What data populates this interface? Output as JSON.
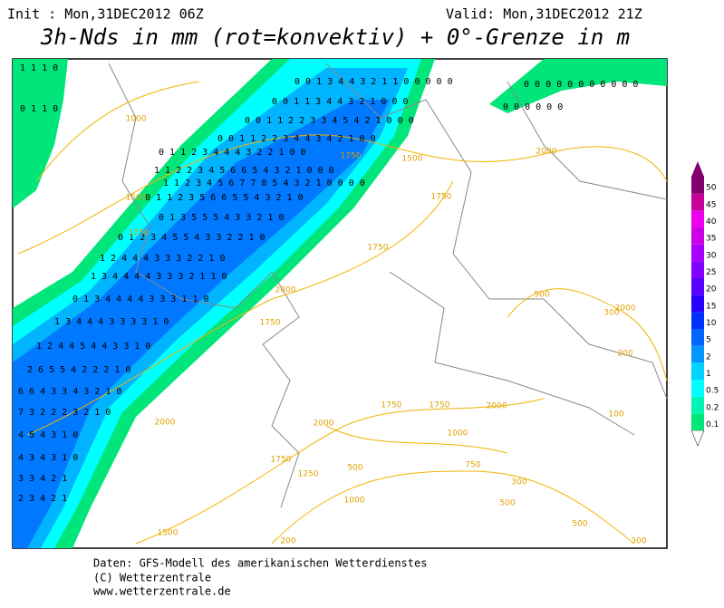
{
  "header": {
    "init": "Init : Mon,31DEC2012 06Z",
    "valid": "Valid: Mon,31DEC2012 21Z",
    "title": "3h-Nds in mm (rot=konvektiv) + 0°-Grenze in m"
  },
  "legend": {
    "labels": [
      "0.1",
      "0.2",
      "0.5",
      "1",
      "2",
      "5",
      "10",
      "15",
      "20",
      "25",
      "30",
      "35",
      "40",
      "45",
      "50"
    ],
    "colors": [
      "#00e67a",
      "#00f5b5",
      "#00ffff",
      "#00d2ff",
      "#0096ff",
      "#0064ff",
      "#0032ff",
      "#2800ff",
      "#5a00ff",
      "#8200ff",
      "#a800ff",
      "#cc00e6",
      "#ee00ee",
      "#c8009a",
      "#82006e"
    ]
  },
  "grid_rows": [
    "0 0 1 3 4 4 3 2 1 1 0 0 0 0 0",
    "0 0 1 1 3 4 4 3 2 1 0 0 0",
    "0 0 1 1 2 2 3 3 4 5 4 2 1 0 0 0",
    "0 0 1 1 2 2 3 4 4 3 4 2 1 0 0",
    "0 1 1 2 3 4 4 4 3 2 2 1 0 0",
    "1 1 2 2 3 4 5 6 6 5 4 3 2 1 0 0 0",
    "1 1 2 3 4 5 6 7 7 8 5 4 3 2 1 0 0 0 0",
    "0 1 1 2 3 5 6 6 5 5 4 3 2 1 0",
    "0 1 3 5 5 5 4 3 3 2 1 0",
    "0 1 2 3 4 5 5 4 3 3 2 2 1 0",
    "1 2 4 4 4 3 3 3 2 2 1 0",
    "1 3 4 4 4 4 3 3 3 2 1 1 0",
    "0 1 3 4 4 4 4 3 3 3 1 1 0",
    "1 3 4 4 4 3 3 3 3 1 0",
    "1 2 4 4 5 4 4 3 3 1 0",
    "2 6 5 5 4 2 2 2 1 0",
    "6 6 4 3 3 4 3 2 1 0",
    "7 3 2 2 2 3 2 1 0",
    "4 5 4 3 1 0",
    "4 3 4 3 1 0",
    "3 3 4 2 1",
    "2 3 4 2 1",
    "0 0 0 0 0 0 0 0 0 0 0",
    "0 0 0 0 0 0",
    "1 1 1 0",
    "0 1 1 0"
  ],
  "contour_labels": [
    "1000",
    "1500",
    "1750",
    "1750",
    "1500",
    "2000",
    "1750",
    "1750",
    "2000",
    "1750",
    "2000",
    "1750",
    "1750",
    "1000",
    "2000",
    "300",
    "200",
    "100",
    "500",
    "2000",
    "500",
    "1000",
    "750",
    "1500",
    "500",
    "300",
    "200",
    "1250",
    "300",
    "500",
    "1750",
    "2000"
  ],
  "footer": [
    "Daten: GFS-Modell des amerikanischen Wetterdienstes",
    "(C) Wetterzentrale",
    "www.wetterzentrale.de"
  ]
}
